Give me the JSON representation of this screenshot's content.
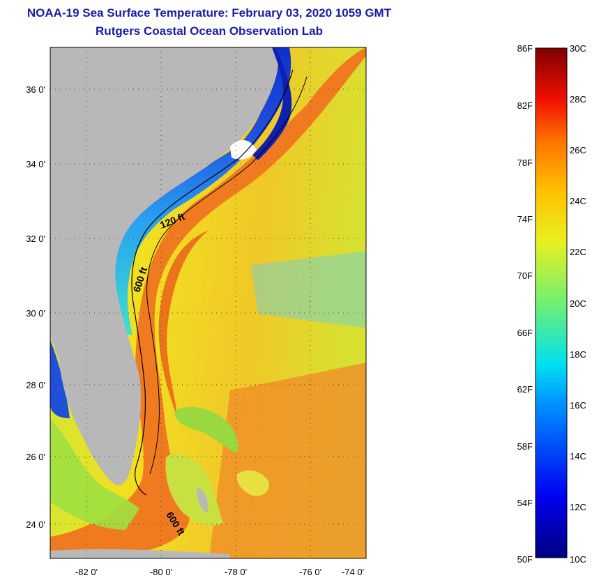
{
  "header": {
    "title": "NOAA-19 Sea Surface Temperature:  February 03, 2020 1059 GMT",
    "subtitle": "Rutgers Coastal Ocean Observation Lab"
  },
  "map": {
    "lat_labels": [
      "36 0'",
      "34 0'",
      "32 0'",
      "30 0'",
      "28 0'",
      "26 0'",
      "24 0'"
    ],
    "lon_labels": [
      "-82 0'",
      "-80 0'",
      "-78 0'",
      "-76 0'",
      "-74 0'"
    ],
    "contours": {
      "shallow": "120 ft",
      "deep": "600 ft",
      "deep_south": "600 ft"
    },
    "colors": {
      "land": "#b8b8b8",
      "gulf_stream": "#f07a20",
      "shelf_cold": "#1a3fd0"
    }
  },
  "colorbar": {
    "fahrenheit_labels": [
      "86F",
      "82F",
      "78F",
      "74F",
      "70F",
      "66F",
      "62F",
      "58F",
      "54F",
      "50F"
    ],
    "celsius_labels": [
      "30C",
      "28C",
      "26C",
      "24C",
      "22C",
      "20C",
      "18C",
      "16C",
      "14C",
      "12C",
      "10C"
    ],
    "range_f": [
      50,
      86
    ],
    "range_c": [
      10,
      30
    ]
  }
}
